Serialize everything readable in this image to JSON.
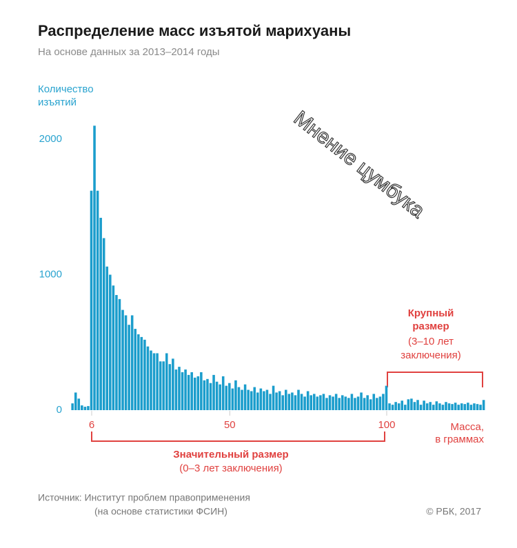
{
  "chart_data": {
    "type": "histogram",
    "title": "Распределение масс изъятой марихуаны",
    "subtitle": "На основе данных за 2013–2014 годы",
    "y_label": [
      "Количество",
      "изъятий"
    ],
    "x_label": [
      "Масса,",
      "в граммах"
    ],
    "color": "#1b9dcc",
    "bins": [
      -0.5,
      0.5,
      1.5,
      2.5,
      3.5,
      4.5,
      5.5,
      6.5,
      7.5,
      8.5,
      9.5,
      10.5,
      11.5,
      12.5,
      13.5,
      14.5,
      15.5,
      16.5,
      17.5,
      18.5,
      19.5,
      20.5,
      21.5,
      22.5,
      23.5,
      24.5,
      25.5,
      26.5,
      27.5,
      28.5,
      29.5,
      30.5,
      31.5,
      32.5,
      33.5,
      34.5,
      35.5,
      36.5,
      37.5,
      38.5,
      39.5,
      40.5,
      41.5,
      42.5,
      43.5,
      44.5,
      45.5,
      46.5,
      47.5,
      48.5,
      49.5,
      50.5,
      51.5,
      52.5,
      53.5,
      54.5,
      55.5,
      56.5,
      57.5,
      58.5,
      59.5,
      60.5,
      61.5,
      62.5,
      63.5,
      64.5,
      65.5,
      66.5,
      67.5,
      68.5,
      69.5,
      70.5,
      71.5,
      72.5,
      73.5,
      74.5,
      75.5,
      76.5,
      77.5,
      78.5,
      79.5,
      80.5,
      81.5,
      82.5,
      83.5,
      84.5,
      85.5,
      86.5,
      87.5,
      88.5,
      89.5,
      90.5,
      91.5,
      92.5,
      93.5,
      94.5,
      95.5,
      96.5,
      97.5,
      98.5,
      99.5,
      100.5,
      101.5,
      102.5,
      103.5,
      104.5,
      105.5,
      106.5,
      107.5,
      108.5,
      109.5,
      110.5,
      111.5,
      112.5,
      113.5,
      114.5,
      115.5,
      116.5,
      117.5,
      118.5,
      119.5,
      120.5,
      121.5,
      122.5,
      123.5,
      124.5,
      125.5,
      126.5,
      127.5,
      128.5,
      129.5,
      130.5,
      131.5
    ],
    "values": [
      50,
      130,
      85,
      35,
      25,
      30,
      1620,
      2100,
      1620,
      1420,
      1270,
      1060,
      1000,
      920,
      850,
      820,
      740,
      700,
      630,
      700,
      600,
      560,
      540,
      520,
      470,
      440,
      420,
      420,
      360,
      360,
      420,
      340,
      380,
      300,
      320,
      280,
      300,
      260,
      280,
      240,
      250,
      280,
      220,
      230,
      200,
      260,
      210,
      190,
      250,
      180,
      200,
      160,
      220,
      170,
      150,
      190,
      150,
      140,
      170,
      130,
      160,
      140,
      150,
      120,
      180,
      130,
      140,
      110,
      150,
      120,
      130,
      110,
      150,
      120,
      100,
      140,
      110,
      120,
      100,
      110,
      120,
      90,
      110,
      100,
      120,
      90,
      110,
      100,
      90,
      120,
      90,
      100,
      130,
      90,
      110,
      80,
      120,
      90,
      100,
      120,
      180,
      50,
      40,
      60,
      50,
      70,
      40,
      80,
      85,
      60,
      75,
      40,
      70,
      50,
      60,
      40,
      65,
      50,
      40,
      60,
      50,
      45,
      55,
      40,
      50,
      45,
      55,
      40,
      50,
      45,
      40,
      75
    ],
    "xlim": [
      -0.5,
      131.5
    ],
    "ylim": [
      0,
      2200
    ],
    "xticks": [
      6,
      50,
      100
    ],
    "yticks": [
      0,
      1000,
      2000
    ],
    "annotations": {
      "large": {
        "title": [
          "Крупный",
          "размер"
        ],
        "note": [
          "(3–10 лет",
          "заключения)"
        ]
      },
      "significant": {
        "title": "Значительный размер",
        "note": "(0–3 лет заключения)"
      }
    },
    "watermark": "Мнение цумбука",
    "source": [
      "Источник: Институт проблем правоприменения",
      "(на основе статистики ФСИН)"
    ],
    "credit": "© РБК, 2017"
  }
}
